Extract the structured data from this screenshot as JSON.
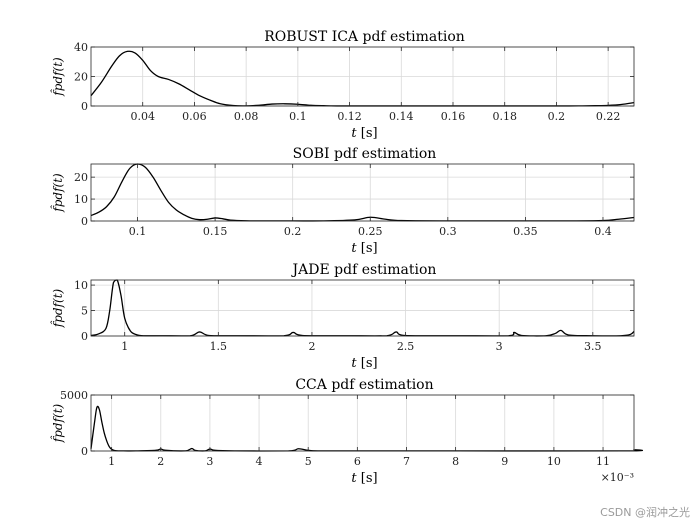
{
  "chart_data": [
    {
      "type": "line",
      "title": "ROBUST ICA pdf estimation",
      "xlabel_var": "t",
      "xlabel_unit": "[s]",
      "ylabel": "f̂pdf(t)",
      "xlim": [
        0.02,
        0.23
      ],
      "ylim": [
        0,
        40
      ],
      "xticks": [
        0.04,
        0.06,
        0.08,
        0.1,
        0.12,
        0.14,
        0.16,
        0.18,
        0.2,
        0.22
      ],
      "xtick_labels": [
        "0.04",
        "0.06",
        "0.08",
        "0.1",
        "0.12",
        "0.14",
        "0.16",
        "0.18",
        "0.2",
        "0.22"
      ],
      "yticks": [
        0,
        20,
        40
      ],
      "ytick_labels": [
        "0",
        "20",
        "40"
      ],
      "x": [
        0.02,
        0.024,
        0.028,
        0.031,
        0.034,
        0.037,
        0.04,
        0.043,
        0.046,
        0.05,
        0.054,
        0.058,
        0.062,
        0.066,
        0.07,
        0.075,
        0.08,
        0.085,
        0.09,
        0.095,
        0.1,
        0.105,
        0.11,
        0.115,
        0.13,
        0.15,
        0.17,
        0.19,
        0.205,
        0.21,
        0.215,
        0.22,
        0.225,
        0.23
      ],
      "y": [
        7,
        16,
        27,
        34,
        37,
        36,
        31,
        24,
        20,
        18,
        15,
        11,
        7,
        4,
        1.5,
        0.3,
        0.1,
        0.5,
        1.3,
        1.5,
        1.2,
        0.5,
        0.2,
        0.05,
        0.05,
        0.05,
        0.05,
        0.05,
        0.05,
        0.1,
        0.2,
        0.4,
        1.0,
        2.3
      ],
      "grid": true
    },
    {
      "type": "line",
      "title": "SOBI pdf estimation",
      "xlabel_var": "t",
      "xlabel_unit": "[s]",
      "ylabel": "f̂pdf(t)",
      "xlim": [
        0.07,
        0.42
      ],
      "ylim": [
        0,
        26
      ],
      "xticks": [
        0.1,
        0.15,
        0.2,
        0.25,
        0.3,
        0.35,
        0.4
      ],
      "xtick_labels": [
        "0.1",
        "0.15",
        "0.2",
        "0.25",
        "0.3",
        "0.35",
        "0.4"
      ],
      "yticks": [
        0,
        10,
        20
      ],
      "ytick_labels": [
        "0",
        "10",
        "20"
      ],
      "x": [
        0.07,
        0.075,
        0.08,
        0.085,
        0.09,
        0.095,
        0.1,
        0.105,
        0.11,
        0.115,
        0.12,
        0.125,
        0.13,
        0.135,
        0.14,
        0.145,
        0.15,
        0.155,
        0.16,
        0.17,
        0.18,
        0.2,
        0.22,
        0.24,
        0.25,
        0.26,
        0.27,
        0.3,
        0.35,
        0.38,
        0.4,
        0.41,
        0.42
      ],
      "y": [
        2.5,
        4,
        6.5,
        11,
        18,
        24,
        26,
        24.5,
        20,
        14,
        8.5,
        5,
        2.8,
        1.2,
        0.6,
        0.8,
        1.4,
        1.0,
        0.4,
        0.1,
        0.05,
        0.05,
        0.05,
        0.5,
        1.7,
        0.8,
        0.2,
        0.05,
        0.05,
        0.05,
        0.2,
        0.8,
        1.6
      ],
      "grid": true
    },
    {
      "type": "line",
      "title": "JADE pdf estimation",
      "xlabel_var": "t",
      "xlabel_unit": "[s]",
      "ylabel": "f̂pdf(t)",
      "xlim": [
        0.82,
        3.72
      ],
      "ylim": [
        0,
        11
      ],
      "xticks": [
        1,
        1.5,
        2,
        2.5,
        3,
        3.5
      ],
      "xtick_labels": [
        "1",
        "1.5",
        "2",
        "2.5",
        "3",
        "3.5"
      ],
      "yticks": [
        0,
        5,
        10
      ],
      "ytick_labels": [
        "0",
        "5",
        "10"
      ],
      "x": [
        0.82,
        0.86,
        0.9,
        0.92,
        0.94,
        0.96,
        0.98,
        1.0,
        1.03,
        1.06,
        1.1,
        1.2,
        1.35,
        1.4,
        1.45,
        1.6,
        1.85,
        1.9,
        1.95,
        2.2,
        2.4,
        2.45,
        2.5,
        2.8,
        3.05,
        3.08,
        3.12,
        3.25,
        3.3,
        3.33,
        3.37,
        3.5,
        3.65,
        3.7,
        3.72
      ],
      "y": [
        0.1,
        0.4,
        1.5,
        5,
        10.5,
        11,
        8,
        3.5,
        1.0,
        0.3,
        0.05,
        0.05,
        0.05,
        0.8,
        0.1,
        0.05,
        0.05,
        0.7,
        0.1,
        0.05,
        0.05,
        0.8,
        0.1,
        0.05,
        0.05,
        0.7,
        0.1,
        0.05,
        0.5,
        1.1,
        0.2,
        0.05,
        0.05,
        0.3,
        0.9
      ],
      "grid": true
    },
    {
      "type": "line",
      "title": "CCA pdf estimation",
      "xlabel_var": "t",
      "xlabel_unit": "[s]",
      "ylabel": "f̂pdf(t)",
      "xlim": [
        0.00058,
        0.01163
      ],
      "ylim": [
        0,
        5000
      ],
      "xticks": [
        0.001,
        0.002,
        0.003,
        0.004,
        0.005,
        0.006,
        0.007,
        0.008,
        0.009,
        0.01,
        0.011
      ],
      "xtick_labels": [
        "1",
        "2",
        "3",
        "4",
        "5",
        "6",
        "7",
        "8",
        "9",
        "10",
        "11"
      ],
      "x_exponent_label": "×10⁻³",
      "yticks": [
        0,
        5000
      ],
      "ytick_labels": [
        "0",
        "5000"
      ],
      "x": [
        0.00058,
        0.00065,
        0.0007,
        0.00075,
        0.0008,
        0.00085,
        0.0009,
        0.00095,
        0.001,
        0.00105,
        0.0011,
        0.0012,
        0.0015,
        0.0019,
        0.002,
        0.0021,
        0.0025,
        0.00263,
        0.0027,
        0.0029,
        0.003,
        0.0031,
        0.0035,
        0.0046,
        0.0048,
        0.005,
        0.0052,
        0.006,
        0.008,
        0.0115,
        0.01163
      ],
      "y": [
        200,
        2500,
        3900,
        3700,
        2600,
        1600,
        900,
        400,
        150,
        60,
        20,
        10,
        10,
        60,
        180,
        60,
        10,
        220,
        60,
        10,
        180,
        60,
        10,
        10,
        200,
        60,
        10,
        10,
        10,
        10,
        120
      ],
      "grid": true
    }
  ],
  "watermark": "CSDN @润冲之光"
}
